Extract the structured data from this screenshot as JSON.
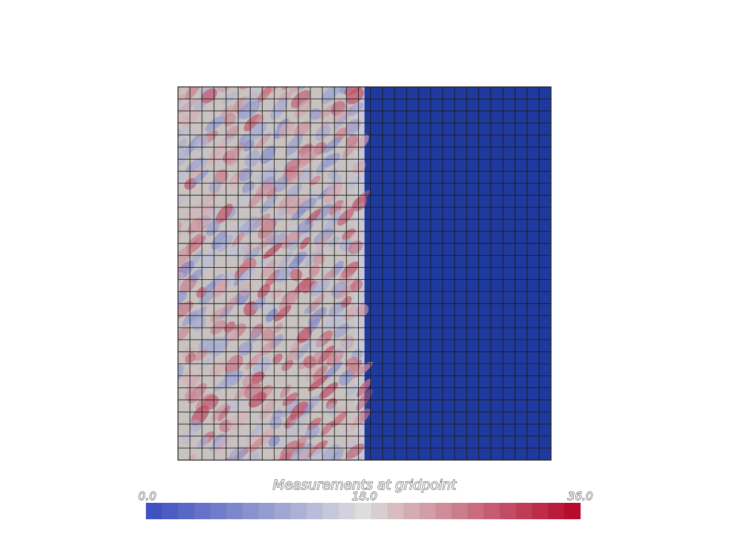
{
  "chart_data": {
    "type": "heatmap",
    "title": "",
    "grid": {
      "rows": 31,
      "cols": 31,
      "boundary_column": 15.5,
      "right_region_value": 0.0,
      "left_region_baseline_value": 18.0,
      "left_region_variation_range": [
        8.0,
        30.0
      ]
    },
    "grid_lines": true,
    "scalar_bar": {
      "title": "Measurements at gridpoint",
      "min": 0.0,
      "mid": 18.0,
      "max": 36.0,
      "tick_labels": [
        "0.0",
        "18.0",
        "36.0"
      ],
      "num_colors": 27,
      "colormap": "coolwarm"
    },
    "colors": {
      "low": "#3b4cc0",
      "mid": "#dddddd",
      "high": "#b40426",
      "grid_line": "#1a1a1a",
      "right_fill": "#1f3a9e"
    }
  }
}
